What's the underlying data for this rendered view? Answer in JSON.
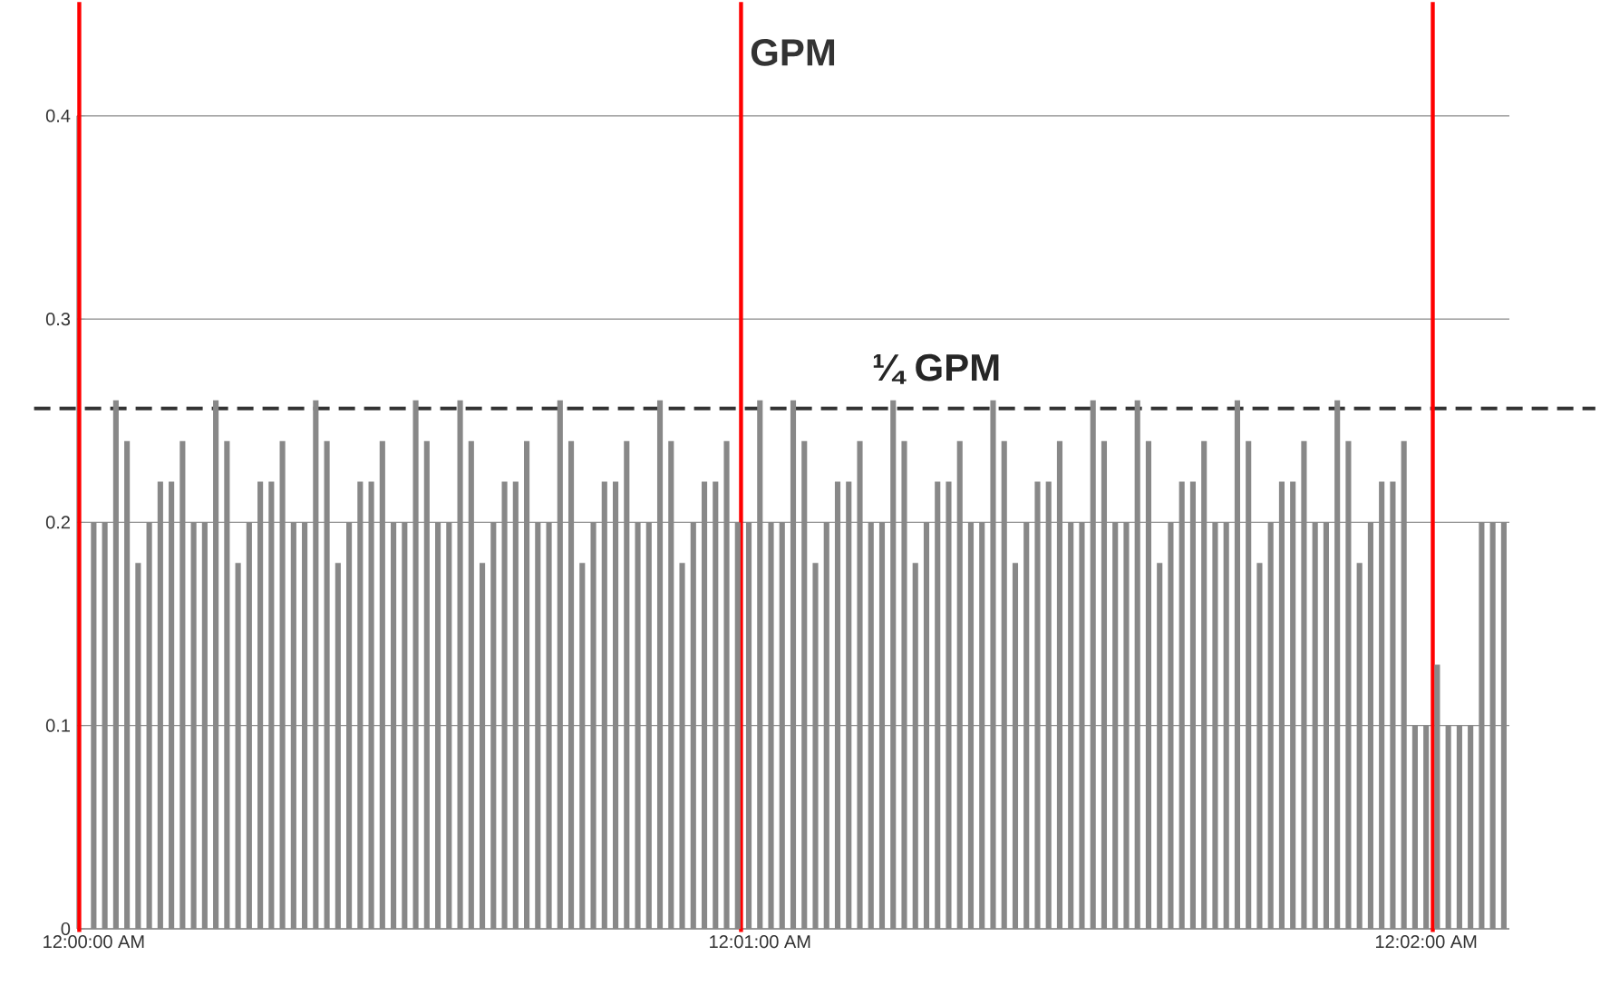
{
  "chart_data": {
    "type": "bar",
    "title": "GPM",
    "x": [
      0,
      1,
      2,
      3,
      4,
      5,
      6,
      7,
      8,
      9,
      10,
      11,
      12,
      13,
      14,
      15,
      16,
      17,
      18,
      19,
      20,
      21,
      22,
      23,
      24,
      25,
      26,
      27,
      28,
      29,
      30,
      31,
      32,
      33,
      34,
      35,
      36,
      37,
      38,
      39,
      40,
      41,
      42,
      43,
      44,
      45,
      46,
      47,
      48,
      49,
      50,
      51,
      52,
      53,
      54,
      55,
      56,
      57,
      58,
      59,
      60,
      61,
      62,
      63,
      64,
      65,
      66,
      67,
      68,
      69,
      70,
      71,
      72,
      73,
      74,
      75,
      76,
      77,
      78,
      79,
      80,
      81,
      82,
      83,
      84,
      85,
      86,
      87,
      88,
      89,
      90,
      91,
      92,
      93,
      94,
      95,
      96,
      97,
      98,
      99,
      100,
      101,
      102,
      103,
      104,
      105,
      106,
      107,
      108,
      109,
      110,
      111,
      112,
      113,
      114,
      115,
      116,
      117,
      118,
      119,
      120,
      121,
      122,
      123,
      124,
      125,
      126,
      127
    ],
    "values": [
      0.2,
      0.2,
      0.26,
      0.24,
      0.18,
      0.2,
      0.22,
      0.22,
      0.24,
      0.2,
      0.2,
      0.26,
      0.24,
      0.18,
      0.2,
      0.22,
      0.22,
      0.24,
      0.2,
      0.2,
      0.26,
      0.24,
      0.18,
      0.2,
      0.22,
      0.22,
      0.24,
      0.2,
      0.2,
      0.26,
      0.24,
      0.2,
      0.2,
      0.26,
      0.24,
      0.18,
      0.2,
      0.22,
      0.22,
      0.24,
      0.2,
      0.2,
      0.26,
      0.24,
      0.18,
      0.2,
      0.22,
      0.22,
      0.24,
      0.2,
      0.2,
      0.26,
      0.24,
      0.18,
      0.2,
      0.22,
      0.22,
      0.24,
      0.2,
      0.2,
      0.26,
      0.2,
      0.2,
      0.26,
      0.24,
      0.18,
      0.2,
      0.22,
      0.22,
      0.24,
      0.2,
      0.2,
      0.26,
      0.24,
      0.18,
      0.2,
      0.22,
      0.22,
      0.24,
      0.2,
      0.2,
      0.26,
      0.24,
      0.18,
      0.2,
      0.22,
      0.22,
      0.24,
      0.2,
      0.2,
      0.26,
      0.24,
      0.2,
      0.2,
      0.26,
      0.24,
      0.18,
      0.2,
      0.22,
      0.22,
      0.24,
      0.2,
      0.2,
      0.26,
      0.24,
      0.18,
      0.2,
      0.22,
      0.22,
      0.24,
      0.2,
      0.2,
      0.26,
      0.24,
      0.18,
      0.2,
      0.22,
      0.22,
      0.24,
      0.1,
      0.1,
      0.13,
      0.1,
      0.1,
      0.1,
      0.2,
      0.2,
      0.2
    ],
    "color": "#888888",
    "xlim": [
      -1.5,
      127.5
    ],
    "xticks": [
      {
        "value": 0,
        "label": "12:00:00 AM"
      },
      {
        "value": 60,
        "label": "12:01:00 AM"
      },
      {
        "value": 120,
        "label": "12:02:00 AM"
      }
    ],
    "ylim": [
      0,
      0.4
    ],
    "yticks": [
      0,
      0.1,
      0.2,
      0.3,
      0.4
    ],
    "grid": "y",
    "ref_lines": [
      {
        "axis": "y",
        "value": 0.256,
        "label": "¼ GPM",
        "color": "#333333",
        "line_style": "dashed"
      },
      {
        "axis": "x",
        "value": -1.3,
        "color": "#ff0000"
      },
      {
        "axis": "x",
        "value": 58.3,
        "color": "#ff0000"
      },
      {
        "axis": "x",
        "value": 120.6,
        "color": "#ff0000"
      }
    ]
  }
}
